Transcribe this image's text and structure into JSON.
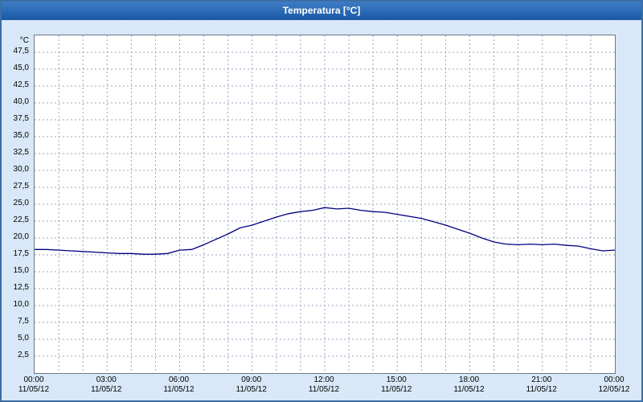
{
  "window": {
    "title": "Temperatura [°C]"
  },
  "colors": {
    "title_bar": "#1a5aa8",
    "title_text": "#ffffff",
    "background": "#d8e8f8",
    "plot_background": "#ffffff",
    "grid": "#98a6bc",
    "line": "#000080",
    "axis_text": "#000000"
  },
  "chart_data": {
    "type": "line",
    "title": "Temperatura [°C]",
    "ylabel": "°C",
    "xlabel": "",
    "ylim": [
      0,
      50
    ],
    "xlim_hours": [
      0,
      24
    ],
    "grid": "dashed, vertical every 1h, horizontal every 2.5°C",
    "legend_position": "none",
    "y_ticks": [
      {
        "v": 47.5,
        "label": "47,5"
      },
      {
        "v": 45.0,
        "label": "45,0"
      },
      {
        "v": 42.5,
        "label": "42,5"
      },
      {
        "v": 40.0,
        "label": "40,0"
      },
      {
        "v": 37.5,
        "label": "37,5"
      },
      {
        "v": 35.0,
        "label": "35,0"
      },
      {
        "v": 32.5,
        "label": "32,5"
      },
      {
        "v": 30.0,
        "label": "30,0"
      },
      {
        "v": 27.5,
        "label": "27,5"
      },
      {
        "v": 25.0,
        "label": "25,0"
      },
      {
        "v": 22.5,
        "label": "22,5"
      },
      {
        "v": 20.0,
        "label": "20,0"
      },
      {
        "v": 17.5,
        "label": "17,5"
      },
      {
        "v": 15.0,
        "label": "15,0"
      },
      {
        "v": 12.5,
        "label": "12,5"
      },
      {
        "v": 10.0,
        "label": "10,0"
      },
      {
        "v": 7.5,
        "label": "7,5"
      },
      {
        "v": 5.0,
        "label": "5,0"
      },
      {
        "v": 2.5,
        "label": "2,5"
      }
    ],
    "x_ticks": [
      {
        "h": 0,
        "time": "00:00",
        "date": "11/05/12"
      },
      {
        "h": 3,
        "time": "03:00",
        "date": "11/05/12"
      },
      {
        "h": 6,
        "time": "06:00",
        "date": "11/05/12"
      },
      {
        "h": 9,
        "time": "09:00",
        "date": "11/05/12"
      },
      {
        "h": 12,
        "time": "12:00",
        "date": "11/05/12"
      },
      {
        "h": 15,
        "time": "15:00",
        "date": "11/05/12"
      },
      {
        "h": 18,
        "time": "18:00",
        "date": "11/05/12"
      },
      {
        "h": 21,
        "time": "21:00",
        "date": "11/05/12"
      },
      {
        "h": 24,
        "time": "00:00",
        "date": "12/05/12"
      }
    ],
    "series": [
      {
        "name": "Temperatura",
        "color": "#000080",
        "x_hours": [
          0,
          0.5,
          1,
          1.5,
          2,
          2.5,
          3,
          3.5,
          4,
          4.5,
          5,
          5.5,
          6,
          6.5,
          7,
          7.5,
          8,
          8.5,
          9,
          9.5,
          10,
          10.5,
          11,
          11.5,
          12,
          12.5,
          13,
          13.5,
          14,
          14.5,
          15,
          15.5,
          16,
          16.5,
          17,
          17.5,
          18,
          18.5,
          19,
          19.5,
          20,
          20.5,
          21,
          21.5,
          22,
          22.5,
          23,
          23.5,
          24
        ],
        "values": [
          18.3,
          18.3,
          18.2,
          18.1,
          18.0,
          17.9,
          17.8,
          17.7,
          17.7,
          17.6,
          17.6,
          17.7,
          18.2,
          18.3,
          19.0,
          19.8,
          20.6,
          21.5,
          21.9,
          22.5,
          23.1,
          23.6,
          23.9,
          24.1,
          24.5,
          24.3,
          24.4,
          24.1,
          23.9,
          23.8,
          23.5,
          23.2,
          22.9,
          22.4,
          21.9,
          21.3,
          20.7,
          20.0,
          19.4,
          19.1,
          19.0,
          19.1,
          19.0,
          19.1,
          18.9,
          18.8,
          18.4,
          18.1,
          18.2
        ]
      }
    ]
  }
}
